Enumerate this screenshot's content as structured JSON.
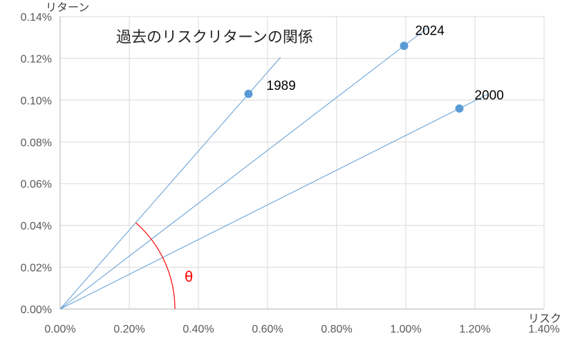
{
  "chart_data": {
    "type": "scatter",
    "title": "過去のリスクリターンの関係",
    "xlabel": "リスク",
    "ylabel": "リターン",
    "xlim": [
      0,
      0.014
    ],
    "ylim": [
      0,
      0.0014
    ],
    "x_ticks": [
      "0.00%",
      "0.20%",
      "0.40%",
      "0.60%",
      "0.80%",
      "1.00%",
      "1.20%",
      "1.40%"
    ],
    "y_ticks": [
      "0.00%",
      "0.02%",
      "0.04%",
      "0.06%",
      "0.08%",
      "0.10%",
      "0.12%",
      "0.14%"
    ],
    "grid": true,
    "points": [
      {
        "label": "1989",
        "x": 0.00545,
        "y": 0.00103
      },
      {
        "label": "2024",
        "x": 0.00995,
        "y": 0.00126
      },
      {
        "label": "2000",
        "x": 0.01155,
        "y": 0.00096
      }
    ],
    "angle_annotation": "θ",
    "colors": {
      "point": "#5B9BD5",
      "line": "#5B9BD5",
      "grid": "#D9D9D9",
      "angle": "#FF0000"
    }
  }
}
